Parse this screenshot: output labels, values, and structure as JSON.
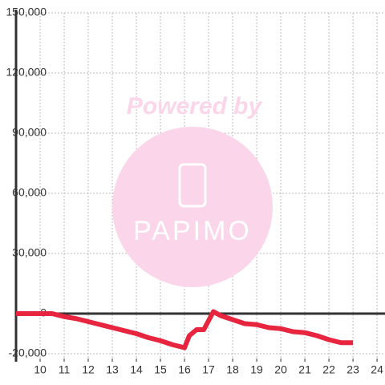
{
  "chart_data": {
    "type": "line",
    "watermark": {
      "top": "Powered by",
      "brand": "PAPIMO"
    },
    "x": [
      9,
      9.5,
      10,
      10.5,
      11,
      11.5,
      12,
      12.5,
      13,
      13.5,
      14,
      14.5,
      15,
      15.5,
      16,
      16.2,
      16.5,
      16.8,
      17.2,
      17.5,
      18,
      18.5,
      19,
      19.5,
      20,
      20.5,
      21,
      21.5,
      22,
      22.5,
      23
    ],
    "series": [
      {
        "color": "#e8253f",
        "values": [
          0,
          0,
          0,
          0,
          -1500,
          -2500,
          -4000,
          -5500,
          -7000,
          -8500,
          -10000,
          -12000,
          -13500,
          -15500,
          -17000,
          -11000,
          -8000,
          -8000,
          1000,
          -1000,
          -3000,
          -5000,
          -5500,
          -7000,
          -7500,
          -9000,
          -9500,
          -11000,
          -13000,
          -14500,
          -14500
        ]
      }
    ],
    "xlim": [
      9,
      24.33
    ],
    "xticks": [
      10,
      11,
      12,
      13,
      14,
      15,
      16,
      17,
      18,
      19,
      20,
      21,
      22,
      23,
      24
    ],
    "ylim": [
      -24000,
      150000
    ],
    "yticks": [
      {
        "value": -20000,
        "label": "-20,000"
      },
      0,
      {
        "value": 30000,
        "label": "30,000"
      },
      {
        "value": 60000,
        "label": "60,000"
      },
      {
        "value": 90000,
        "label": "90,000"
      },
      {
        "value": 120000,
        "label": "120,000"
      },
      {
        "value": 150000,
        "label": "150,000"
      }
    ],
    "grid": true
  }
}
